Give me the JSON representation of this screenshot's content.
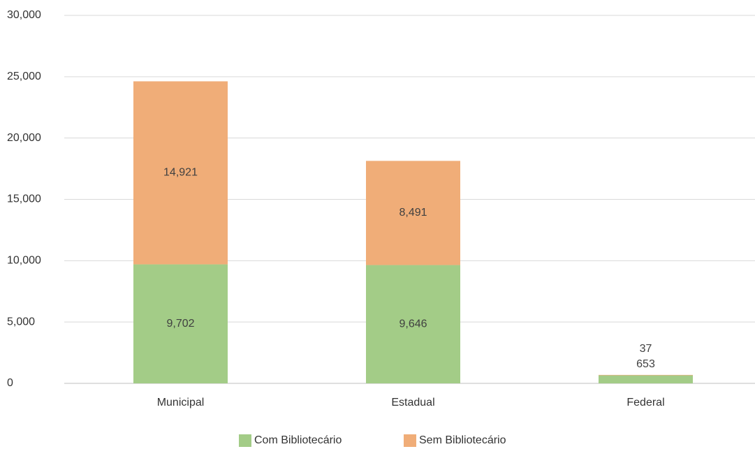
{
  "chart_data": {
    "type": "stacked_bar",
    "categories": [
      "Municipal",
      "Estadual",
      "Federal"
    ],
    "series": [
      {
        "name": "Com Bibliotecário",
        "color": "#a3cc87",
        "values": [
          9702,
          9646,
          653
        ],
        "value_labels": [
          "9,702",
          "9,646",
          "653"
        ]
      },
      {
        "name": "Sem Bibliotecário",
        "color": "#f0ad78",
        "values": [
          14921,
          8491,
          37
        ],
        "value_labels": [
          "14,921",
          "8,491",
          "37"
        ]
      }
    ],
    "ylim": [
      0,
      30000
    ],
    "yticks": [
      0,
      {
        "value": 5000,
        "label": "5,000"
      },
      {
        "value": 10000,
        "label": "10,000"
      },
      {
        "value": 15000,
        "label": "15,000"
      },
      {
        "value": 20000,
        "label": "20,000"
      },
      {
        "value": 25000,
        "label": "25,000"
      },
      {
        "value": 30000,
        "label": "30,000"
      }
    ],
    "grid": true,
    "legend": "bottom"
  }
}
